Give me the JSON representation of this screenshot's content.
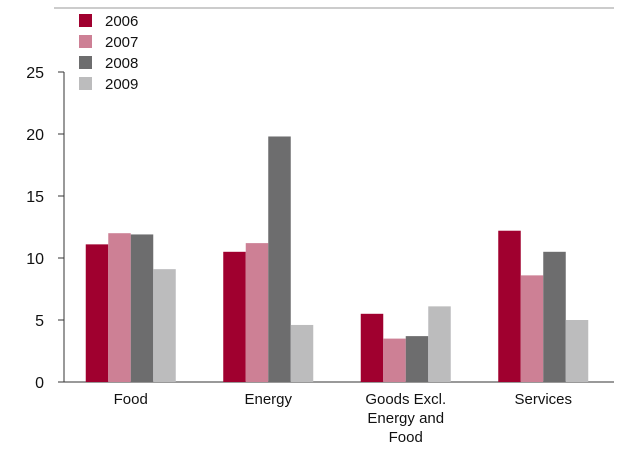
{
  "chart_data": {
    "type": "bar",
    "title": "",
    "xlabel": "",
    "ylabel": "",
    "categories": [
      [
        "Food"
      ],
      [
        "Energy"
      ],
      [
        "Goods Excl.",
        "Energy and",
        "Food"
      ],
      [
        "Services"
      ]
    ],
    "series": [
      {
        "name": "2006",
        "color": "#a0002f",
        "values": [
          11.1,
          10.5,
          5.5,
          12.2
        ]
      },
      {
        "name": "2007",
        "color": "#cd8095",
        "values": [
          12.0,
          11.2,
          3.5,
          8.6
        ]
      },
      {
        "name": "2008",
        "color": "#6d6d6e",
        "values": [
          11.9,
          19.8,
          3.7,
          10.5
        ]
      },
      {
        "name": "2009",
        "color": "#bcbcbd",
        "values": [
          9.1,
          4.6,
          6.1,
          5.0
        ]
      }
    ],
    "yticks": [
      "0",
      "5",
      "10",
      "15",
      "20",
      "25"
    ],
    "ylim": [
      0,
      25
    ],
    "grid": false,
    "legend_position": "top-left"
  }
}
